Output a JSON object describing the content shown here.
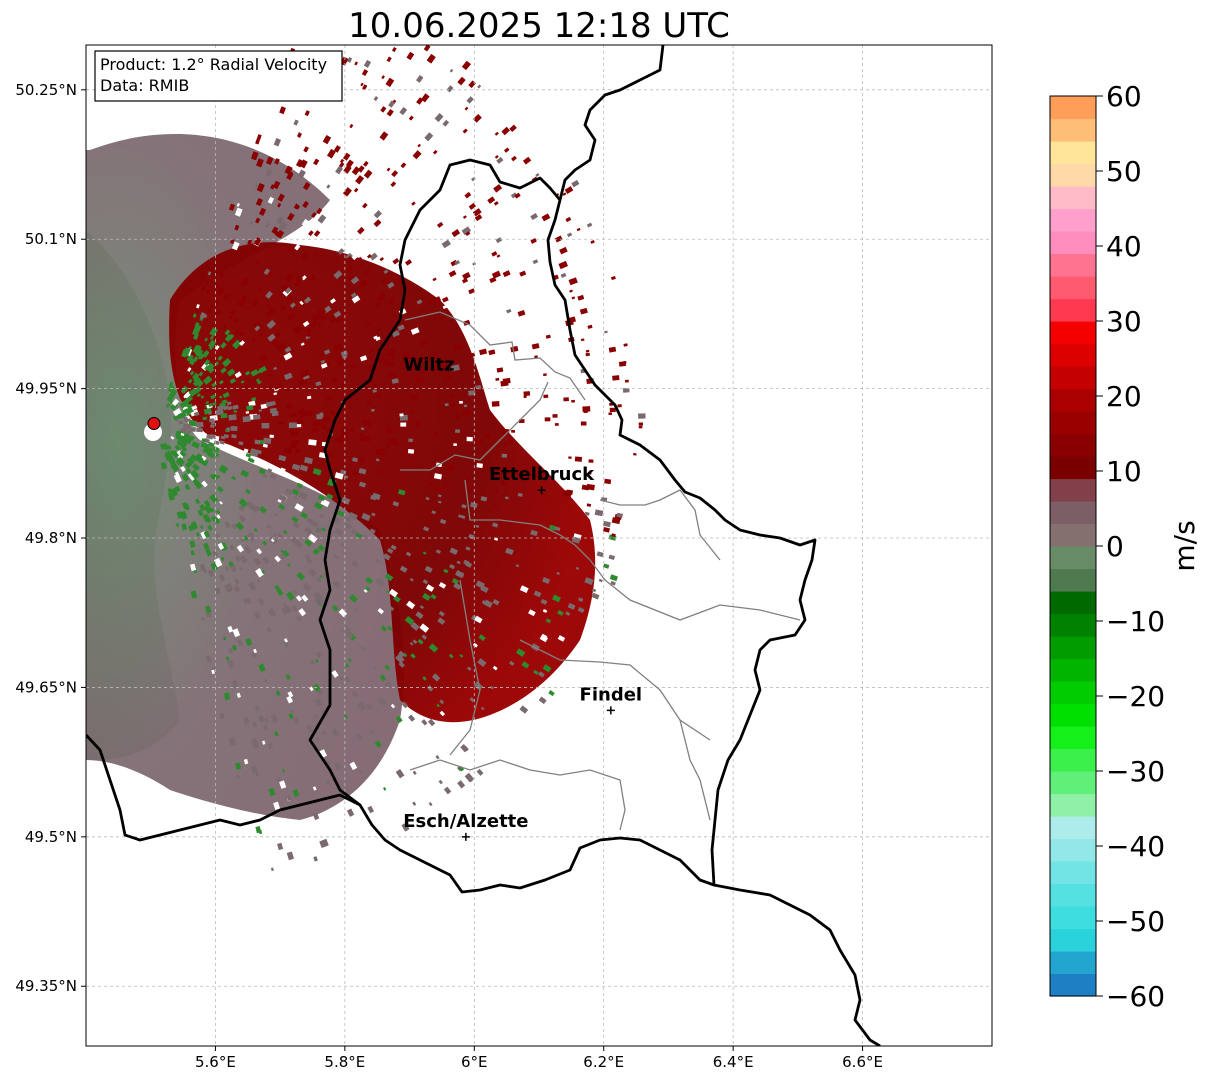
{
  "title": "10.06.2025 12:18 UTC",
  "info_box": {
    "product": "Product: 1.2° Radial Velocity",
    "data_source": "Data: RMIB"
  },
  "map": {
    "lon_range": [
      5.4,
      6.8
    ],
    "lat_range": [
      49.29,
      50.295
    ],
    "lon_ticks": [
      {
        "value": 5.6,
        "label": "5.6°E"
      },
      {
        "value": 5.8,
        "label": "5.8°E"
      },
      {
        "value": 6.0,
        "label": "6°E"
      },
      {
        "value": 6.2,
        "label": "6.2°E"
      },
      {
        "value": 6.4,
        "label": "6.4°E"
      },
      {
        "value": 6.6,
        "label": "6.6°E"
      }
    ],
    "lat_ticks": [
      {
        "value": 50.25,
        "label": "50.25°N"
      },
      {
        "value": 50.1,
        "label": "50.1°N"
      },
      {
        "value": 49.95,
        "label": "49.95°N"
      },
      {
        "value": 49.8,
        "label": "49.8°N"
      },
      {
        "value": 49.65,
        "label": "49.65°N"
      },
      {
        "value": 49.5,
        "label": "49.5°N"
      },
      {
        "value": 49.35,
        "label": "49.35°N"
      }
    ],
    "gridlines": true,
    "radar_site": {
      "lon": 5.505,
      "lat": 49.915
    },
    "cities": [
      {
        "name": "Wiltz",
        "lon": 5.93,
        "lat": 49.968,
        "marker": false
      },
      {
        "name": "Ettelbruck",
        "lon": 6.104,
        "lat": 49.848,
        "marker": true
      },
      {
        "name": "Findel",
        "lon": 6.211,
        "lat": 49.627,
        "marker": true
      },
      {
        "name": "Esch/Alzette",
        "lon": 5.987,
        "lat": 49.5,
        "marker": true
      }
    ]
  },
  "colorbar": {
    "label": "m/s",
    "min": -60,
    "max": 60,
    "ticks": [
      {
        "value": 60,
        "label": "60"
      },
      {
        "value": 50,
        "label": "50"
      },
      {
        "value": 40,
        "label": "40"
      },
      {
        "value": 30,
        "label": "30"
      },
      {
        "value": 20,
        "label": "20"
      },
      {
        "value": 10,
        "label": "10"
      },
      {
        "value": 0,
        "label": "0"
      },
      {
        "value": -10,
        "label": "−10"
      },
      {
        "value": -20,
        "label": "−20"
      },
      {
        "value": -30,
        "label": "−30"
      },
      {
        "value": -40,
        "label": "−40"
      },
      {
        "value": -50,
        "label": "−50"
      },
      {
        "value": -60,
        "label": "−60"
      }
    ],
    "bands": [
      {
        "from": -60,
        "to": -57,
        "color": "#1f7fc4"
      },
      {
        "from": -57,
        "to": -54,
        "color": "#22a6d0"
      },
      {
        "from": -54,
        "to": -51,
        "color": "#2ad3dc"
      },
      {
        "from": -51,
        "to": -48,
        "color": "#3ddde0"
      },
      {
        "from": -48,
        "to": -45,
        "color": "#55e0e2"
      },
      {
        "from": -45,
        "to": -42,
        "color": "#72e4e5"
      },
      {
        "from": -42,
        "to": -39,
        "color": "#92e8e8"
      },
      {
        "from": -39,
        "to": -36,
        "color": "#aeecec"
      },
      {
        "from": -36,
        "to": -33,
        "color": "#8ff0a8"
      },
      {
        "from": -33,
        "to": -30,
        "color": "#60f07a"
      },
      {
        "from": -30,
        "to": -27,
        "color": "#3cf04c"
      },
      {
        "from": -27,
        "to": -24,
        "color": "#15f01a"
      },
      {
        "from": -24,
        "to": -21,
        "color": "#00e000"
      },
      {
        "from": -21,
        "to": -18,
        "color": "#00cc00"
      },
      {
        "from": -18,
        "to": -15,
        "color": "#00b400"
      },
      {
        "from": -15,
        "to": -12,
        "color": "#009c00"
      },
      {
        "from": -12,
        "to": -9,
        "color": "#008200"
      },
      {
        "from": -9,
        "to": -6,
        "color": "#006a00"
      },
      {
        "from": -6,
        "to": -3,
        "color": "#4f7a4f"
      },
      {
        "from": -3,
        "to": 0,
        "color": "#678c67"
      },
      {
        "from": 0,
        "to": 3,
        "color": "#857070"
      },
      {
        "from": 3,
        "to": 6,
        "color": "#7b5e66"
      },
      {
        "from": 6,
        "to": 9,
        "color": "#82404a"
      },
      {
        "from": 9,
        "to": 12,
        "color": "#7a0000"
      },
      {
        "from": 12,
        "to": 15,
        "color": "#8a0000"
      },
      {
        "from": 15,
        "to": 18,
        "color": "#9a0000"
      },
      {
        "from": 18,
        "to": 21,
        "color": "#aa0000"
      },
      {
        "from": 21,
        "to": 24,
        "color": "#c40000"
      },
      {
        "from": 24,
        "to": 27,
        "color": "#dc0000"
      },
      {
        "from": 27,
        "to": 30,
        "color": "#f40000"
      },
      {
        "from": 30,
        "to": 33,
        "color": "#ff3a50"
      },
      {
        "from": 33,
        "to": 36,
        "color": "#ff5a6e"
      },
      {
        "from": 36,
        "to": 39,
        "color": "#ff7390"
      },
      {
        "from": 39,
        "to": 42,
        "color": "#ff8ebe"
      },
      {
        "from": 42,
        "to": 45,
        "color": "#ffa0cc"
      },
      {
        "from": 45,
        "to": 48,
        "color": "#ffbcc8"
      },
      {
        "from": 48,
        "to": 51,
        "color": "#ffd9a8"
      },
      {
        "from": 51,
        "to": 54,
        "color": "#ffe59a"
      },
      {
        "from": 54,
        "to": 57,
        "color": "#ffbe78"
      },
      {
        "from": 57,
        "to": 60,
        "color": "#ff9e58"
      }
    ]
  },
  "colors": {
    "border": "#000000",
    "cantons": "#808080",
    "grid": "#bbbbbb",
    "inbound_green": "#2f8a2f",
    "neutral_gray": "#7a6a6e",
    "outbound_red": "#8a0000",
    "radar_marker": "#e01010"
  }
}
